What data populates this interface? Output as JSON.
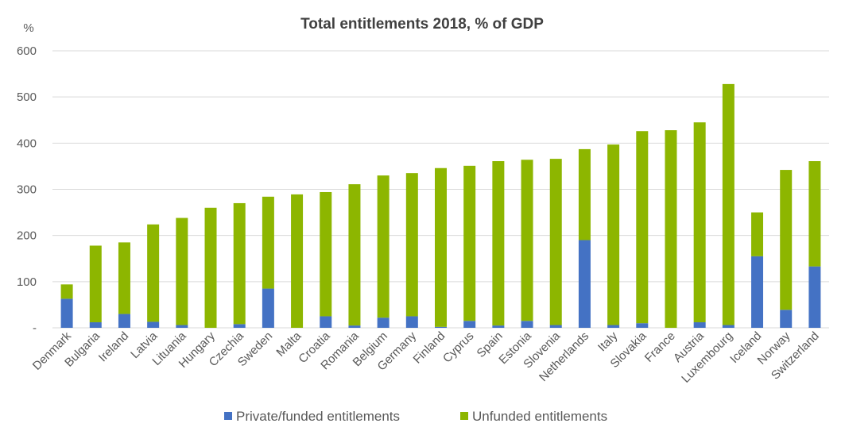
{
  "chart_data": {
    "type": "bar",
    "stacked": true,
    "title": "Total entitlements 2018, % of GDP",
    "ylabel": "%",
    "xlabel": "",
    "ylim": [
      0,
      600
    ],
    "yticks": [
      "-",
      "100",
      "200",
      "300",
      "400",
      "500",
      "600"
    ],
    "grid": true,
    "legend_position": "bottom",
    "categories": [
      "Denmark",
      "Bulgaria",
      "Ireland",
      "Latvia",
      "Lituania",
      "Hungary",
      "Czechia",
      "Sweden",
      "Malta",
      "Croatia",
      "Romania",
      "Belgium",
      "Germany",
      "Finland",
      "Cyprus",
      "Spain",
      "Estonia",
      "Slovenia",
      "Netherlands",
      "Italy",
      "Slovakia",
      "France",
      "Austria",
      "Luxembourg",
      "Iceland",
      "Norway",
      "Switzerland"
    ],
    "series": [
      {
        "name": "Private/funded entitlements",
        "color": "#4472C4",
        "values": [
          63,
          12,
          30,
          13,
          6,
          0,
          8,
          85,
          0,
          25,
          5,
          22,
          25,
          2,
          15,
          5,
          15,
          6,
          190,
          6,
          10,
          0,
          12,
          6,
          155,
          39,
          133
        ]
      },
      {
        "name": "Unfunded entitlements",
        "color": "#8DB600",
        "values": [
          31,
          166,
          155,
          211,
          232,
          260,
          262,
          199,
          289,
          269,
          306,
          308,
          310,
          344,
          336,
          356,
          349,
          360,
          197,
          391,
          416,
          428,
          433,
          522,
          95,
          303,
          228
        ]
      }
    ]
  }
}
